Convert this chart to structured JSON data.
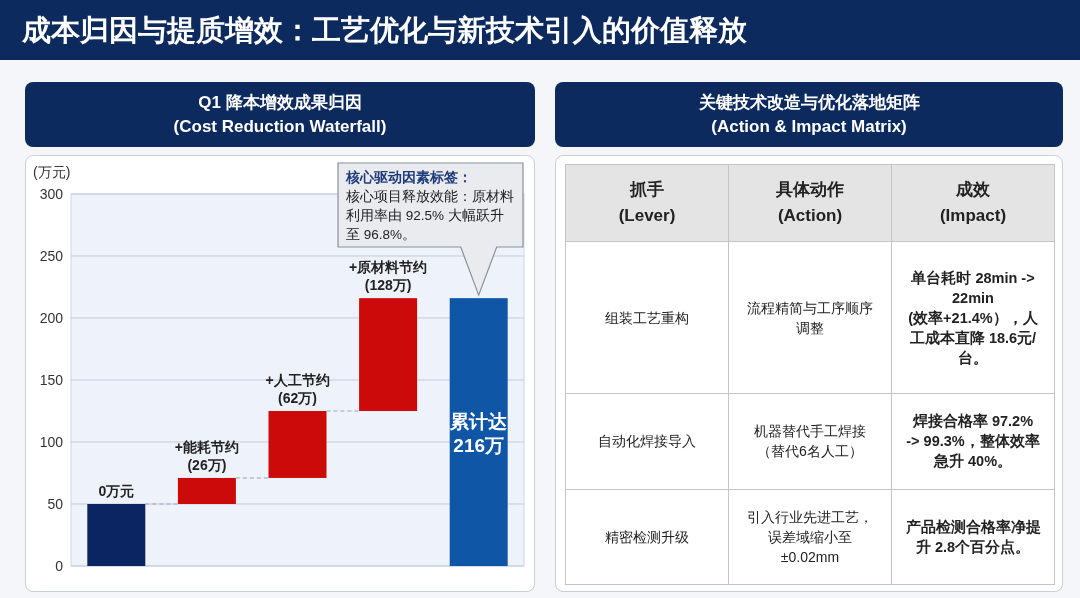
{
  "chart_data": [
    {
      "type": "bar",
      "title": "成本归因与提质增效：工艺优化与新技术引入的价值释放",
      "subtitle": "Q1 降本增效成果归因\n(Cost Reduction Waterfall)",
      "ylabel": "(万元)",
      "categories": [
        null,
        null,
        null,
        null,
        null
      ],
      "values": [
        50,
        21,
        54,
        91,
        216
      ],
      "base": [
        0,
        50,
        71,
        125,
        0
      ],
      "colors": [
        "#0b2462",
        "#cc0a0a",
        "#cc0a0a",
        "#cc0a0a",
        "#0f56a6"
      ],
      "value_labels": [
        null,
        null,
        null,
        null,
        "累计达\n216万"
      ],
      "ylim": [
        0,
        300
      ],
      "yticks": [
        0,
        50,
        100,
        150,
        200,
        250,
        300
      ],
      "grid": "y",
      "annotations": [
        {
          "text": "0万元",
          "y": 50
        },
        {
          "text": "+能耗节约\n(26万)",
          "y": 71
        },
        {
          "text": "+人工节约\n(62万)",
          "y": 125
        },
        {
          "text": "+原材料节约\n(128万)",
          "y": 216
        },
        "核心驱动因素标签：",
        "核心项目释放效能：原材料利用率由 92.5% 大幅跃升至 96.8%。"
      ]
    },
    {
      "type": "other",
      "title": "关键技术改造与优化落地矩阵\n(Action & Impact Matrix)",
      "categories": [
        "抓手\n(Lever)",
        "具体动作\n(Action)",
        "成效\n(Impact)"
      ],
      "annotations": [
        "组装工艺重构",
        "流程精简与工序顺序调整",
        "单台耗时 28min ->\n22min\n(效率+21.4%），人工成本直降 18.6元/台。",
        "自动化焊接导入",
        "机器替代手工焊接（替代6名人工）",
        "焊接合格率 97.2%\n-> 99.3%，整体效率急升 40%。",
        "精密检测升级",
        "引入行业先进工艺，误差域缩小至\n±0.02mm",
        "产品检测合格率净提升 2.8个百分点。"
      ]
    }
  ]
}
